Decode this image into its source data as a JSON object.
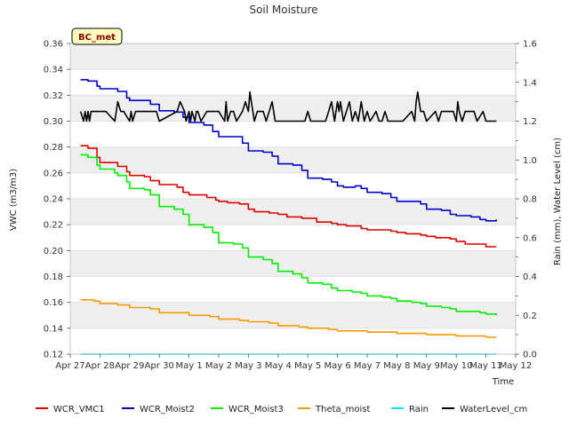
{
  "chart_data": {
    "type": "line",
    "title": "Soil Moisture",
    "badge": "BC_met",
    "xlabel": "Time",
    "ylabel_left": "VWC (m3/m3)",
    "ylabel_right": "Rain (mm), Water Level (cm)",
    "ylim_left": [
      0.12,
      0.36
    ],
    "ylim_right": [
      0.0,
      1.6
    ],
    "xlim": [
      0,
      15
    ],
    "yticks_left": [
      "0.12",
      "0.14",
      "0.16",
      "0.18",
      "0.20",
      "0.22",
      "0.24",
      "0.26",
      "0.28",
      "0.30",
      "0.32",
      "0.34",
      "0.36"
    ],
    "yticks_right": [
      "0.0",
      "0.2",
      "0.4",
      "0.6",
      "0.8",
      "1.0",
      "1.2",
      "1.4",
      "1.6"
    ],
    "xticks": [
      "Apr 27",
      "Apr 28",
      "Apr 29",
      "Apr 30",
      "May 1",
      "May 2",
      "May 3",
      "May 4",
      "May 5",
      "May 6",
      "May 7",
      "May 8",
      "May 9",
      "May 10",
      "May 11",
      "May 12"
    ],
    "background_bands": true,
    "legend_position": "bottom",
    "series": [
      {
        "name": "WCR_VMC1",
        "color": "#dd0000",
        "axis": "left",
        "x": [
          0.35,
          0.6,
          0.9,
          1.0,
          1.5,
          1.6,
          1.9,
          2.0,
          2.5,
          2.7,
          3.0,
          3.2,
          3.6,
          3.8,
          4.0,
          4.3,
          4.6,
          4.9,
          5.0,
          5.3,
          5.7,
          6.0,
          6.2,
          6.7,
          7.0,
          7.3,
          7.8,
          8.0,
          8.3,
          8.8,
          9.0,
          9.3,
          9.8,
          10.0,
          10.3,
          10.8,
          11.0,
          11.3,
          11.8,
          12.0,
          12.3,
          12.8,
          13.0,
          13.3,
          13.8,
          14.0,
          14.35
        ],
        "y": [
          0.281,
          0.279,
          0.272,
          0.268,
          0.268,
          0.265,
          0.261,
          0.258,
          0.257,
          0.254,
          0.251,
          0.251,
          0.249,
          0.245,
          0.243,
          0.243,
          0.241,
          0.239,
          0.238,
          0.237,
          0.236,
          0.232,
          0.23,
          0.229,
          0.228,
          0.226,
          0.225,
          0.225,
          0.222,
          0.221,
          0.22,
          0.219,
          0.217,
          0.216,
          0.216,
          0.215,
          0.214,
          0.213,
          0.212,
          0.211,
          0.21,
          0.209,
          0.207,
          0.205,
          0.205,
          0.203,
          0.203
        ]
      },
      {
        "name": "WCR_Moist2",
        "color": "#0000cc",
        "axis": "left",
        "x": [
          0.35,
          0.6,
          0.9,
          1.0,
          1.5,
          1.6,
          1.9,
          2.0,
          2.5,
          2.7,
          3.0,
          3.5,
          3.8,
          4.0,
          4.2,
          4.5,
          4.8,
          5.0,
          5.5,
          5.8,
          6.0,
          6.5,
          6.8,
          7.0,
          7.5,
          7.8,
          8.0,
          8.5,
          8.8,
          9.0,
          9.2,
          9.6,
          9.8,
          10.0,
          10.5,
          10.8,
          11.0,
          11.5,
          11.8,
          12.0,
          12.5,
          12.8,
          13.0,
          13.5,
          13.8,
          14.0,
          14.35
        ],
        "y": [
          0.332,
          0.331,
          0.327,
          0.325,
          0.325,
          0.323,
          0.318,
          0.316,
          0.316,
          0.313,
          0.308,
          0.307,
          0.303,
          0.299,
          0.299,
          0.297,
          0.292,
          0.288,
          0.288,
          0.283,
          0.277,
          0.276,
          0.273,
          0.267,
          0.266,
          0.262,
          0.256,
          0.255,
          0.253,
          0.25,
          0.249,
          0.25,
          0.248,
          0.245,
          0.244,
          0.241,
          0.238,
          0.238,
          0.236,
          0.232,
          0.231,
          0.228,
          0.227,
          0.226,
          0.224,
          0.223,
          0.224
        ]
      },
      {
        "name": "WCR_Moist3",
        "color": "#00ee00",
        "axis": "left",
        "x": [
          0.35,
          0.6,
          0.9,
          1.0,
          1.5,
          1.6,
          1.9,
          2.0,
          2.5,
          2.7,
          3.0,
          3.5,
          3.8,
          4.0,
          4.5,
          4.8,
          5.0,
          5.5,
          5.8,
          6.0,
          6.5,
          6.8,
          7.0,
          7.5,
          7.8,
          8.0,
          8.5,
          8.8,
          9.0,
          9.5,
          9.8,
          10.0,
          10.5,
          10.8,
          11.0,
          11.5,
          11.8,
          12.0,
          12.5,
          12.8,
          13.0,
          13.5,
          13.8,
          14.0,
          14.35
        ],
        "y": [
          0.274,
          0.272,
          0.266,
          0.263,
          0.26,
          0.258,
          0.253,
          0.248,
          0.247,
          0.243,
          0.234,
          0.232,
          0.228,
          0.22,
          0.218,
          0.214,
          0.206,
          0.205,
          0.202,
          0.195,
          0.193,
          0.19,
          0.184,
          0.182,
          0.179,
          0.175,
          0.174,
          0.171,
          0.169,
          0.168,
          0.167,
          0.165,
          0.164,
          0.163,
          0.161,
          0.16,
          0.159,
          0.157,
          0.156,
          0.155,
          0.153,
          0.153,
          0.152,
          0.151,
          0.15
        ]
      },
      {
        "name": "Theta_moist",
        "color": "#ff9900",
        "axis": "left",
        "x": [
          0.35,
          0.8,
          1.0,
          1.6,
          2.0,
          2.7,
          3.0,
          3.7,
          4.0,
          4.7,
          5.0,
          5.7,
          6.0,
          6.7,
          7.0,
          7.7,
          8.0,
          8.7,
          9.0,
          9.7,
          10.0,
          10.7,
          11.0,
          11.7,
          12.0,
          12.7,
          13.0,
          13.7,
          14.0,
          14.35
        ],
        "y": [
          0.162,
          0.161,
          0.159,
          0.158,
          0.156,
          0.155,
          0.152,
          0.152,
          0.15,
          0.149,
          0.147,
          0.146,
          0.145,
          0.144,
          0.142,
          0.141,
          0.14,
          0.139,
          0.138,
          0.138,
          0.137,
          0.137,
          0.136,
          0.136,
          0.135,
          0.135,
          0.134,
          0.134,
          0.133,
          0.133
        ]
      },
      {
        "name": "Rain",
        "color": "#00e5e5",
        "axis": "right",
        "x": [
          0.35,
          14.35
        ],
        "y": [
          0.0,
          0.0
        ]
      },
      {
        "name": "WaterLevel_cm",
        "color": "#000000",
        "axis": "right",
        "x": [
          0.35,
          0.45,
          0.5,
          0.55,
          0.6,
          0.65,
          0.7,
          1.2,
          1.5,
          1.55,
          1.6,
          1.7,
          1.8,
          2.0,
          2.05,
          2.1,
          2.2,
          2.3,
          2.6,
          2.9,
          3.0,
          3.6,
          3.7,
          3.85,
          3.9,
          4.0,
          4.05,
          4.1,
          4.2,
          4.25,
          4.3,
          4.4,
          4.6,
          4.7,
          5.0,
          5.2,
          5.25,
          5.3,
          5.4,
          5.5,
          5.6,
          5.8,
          5.9,
          6.0,
          6.05,
          6.1,
          6.15,
          6.2,
          6.3,
          6.5,
          6.6,
          6.7,
          6.8,
          6.9,
          7.0,
          7.2,
          7.5,
          7.8,
          7.9,
          8.0,
          8.1,
          8.2,
          8.6,
          8.7,
          8.8,
          8.9,
          8.95,
          9.0,
          9.05,
          9.1,
          9.2,
          9.3,
          9.4,
          9.5,
          9.6,
          9.7,
          9.8,
          9.9,
          10.0,
          10.1,
          10.3,
          10.4,
          10.5,
          10.6,
          10.7,
          11.0,
          11.2,
          11.5,
          11.6,
          11.65,
          11.7,
          11.75,
          11.8,
          11.9,
          12.0,
          12.3,
          12.4,
          12.5,
          12.9,
          13.0,
          13.05,
          13.1,
          13.2,
          13.3,
          13.6,
          13.7,
          13.9,
          14.0,
          14.35
        ],
        "y": [
          1.25,
          1.2,
          1.25,
          1.2,
          1.25,
          1.2,
          1.25,
          1.25,
          1.2,
          1.25,
          1.3,
          1.25,
          1.25,
          1.2,
          1.25,
          1.2,
          1.25,
          1.25,
          1.25,
          1.25,
          1.2,
          1.25,
          1.3,
          1.25,
          1.2,
          1.25,
          1.2,
          1.25,
          1.2,
          1.25,
          1.25,
          1.2,
          1.25,
          1.25,
          1.25,
          1.2,
          1.3,
          1.2,
          1.25,
          1.25,
          1.2,
          1.25,
          1.3,
          1.25,
          1.35,
          1.3,
          1.25,
          1.2,
          1.25,
          1.25,
          1.2,
          1.25,
          1.3,
          1.2,
          1.2,
          1.2,
          1.2,
          1.2,
          1.2,
          1.25,
          1.2,
          1.2,
          1.2,
          1.25,
          1.3,
          1.2,
          1.25,
          1.3,
          1.25,
          1.3,
          1.2,
          1.25,
          1.3,
          1.2,
          1.25,
          1.2,
          1.3,
          1.2,
          1.25,
          1.2,
          1.25,
          1.2,
          1.2,
          1.25,
          1.2,
          1.2,
          1.2,
          1.25,
          1.2,
          1.3,
          1.35,
          1.3,
          1.25,
          1.25,
          1.2,
          1.25,
          1.2,
          1.25,
          1.25,
          1.2,
          1.3,
          1.25,
          1.2,
          1.25,
          1.25,
          1.2,
          1.25,
          1.2,
          1.2
        ]
      }
    ]
  }
}
